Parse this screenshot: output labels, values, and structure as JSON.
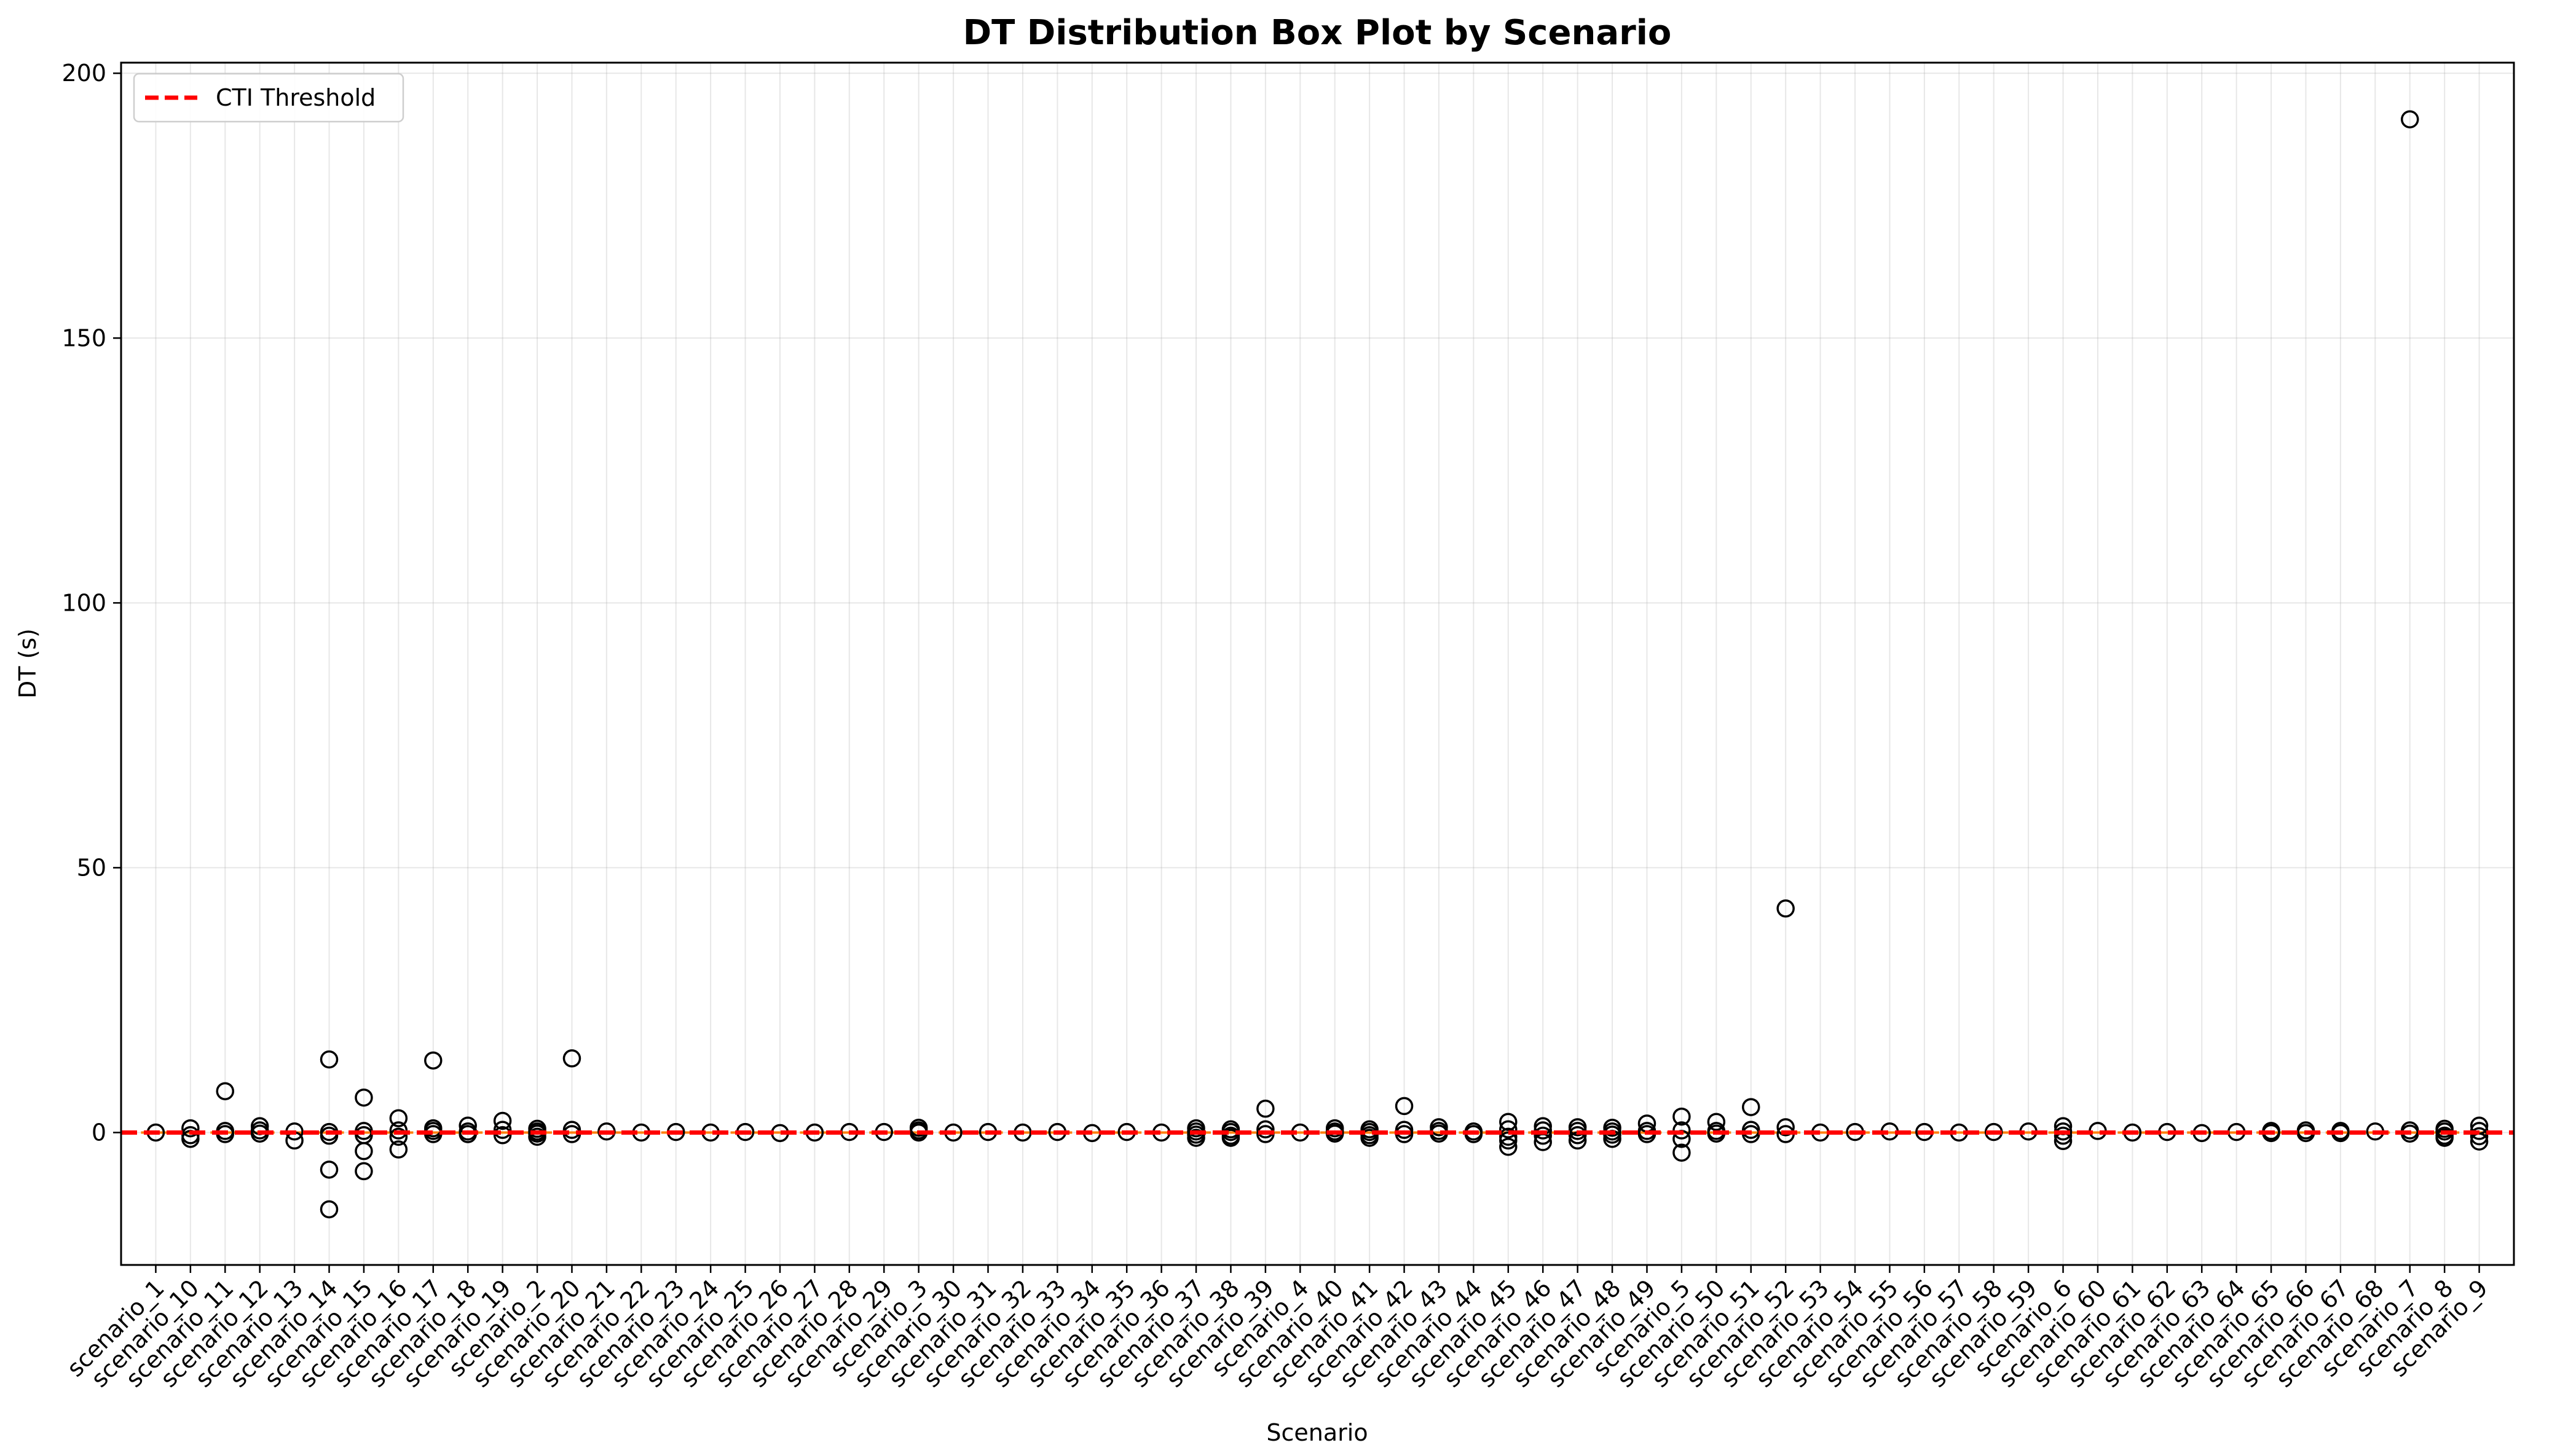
{
  "chart_data": {
    "type": "box",
    "title": "DT Distribution Box Plot by Scenario",
    "xlabel": "Scenario",
    "ylabel": "DT (s)",
    "ylim": [
      -25,
      202
    ],
    "yticks": [
      0,
      50,
      100,
      150,
      200
    ],
    "grid": true,
    "legend": {
      "placement": "top-left",
      "entries": [
        {
          "label": "CTI Threshold",
          "color": "#ff0000",
          "style": "dashed"
        }
      ]
    },
    "threshold": {
      "label": "CTI Threshold",
      "value": 0,
      "color": "#ff0000"
    },
    "categories": [
      "scenario_1",
      "scenario_10",
      "scenario_11",
      "scenario_12",
      "scenario_13",
      "scenario_14",
      "scenario_15",
      "scenario_16",
      "scenario_17",
      "scenario_18",
      "scenario_19",
      "scenario_2",
      "scenario_20",
      "scenario_21",
      "scenario_22",
      "scenario_23",
      "scenario_24",
      "scenario_25",
      "scenario_26",
      "scenario_27",
      "scenario_28",
      "scenario_29",
      "scenario_3",
      "scenario_30",
      "scenario_31",
      "scenario_32",
      "scenario_33",
      "scenario_34",
      "scenario_35",
      "scenario_36",
      "scenario_37",
      "scenario_38",
      "scenario_39",
      "scenario_4",
      "scenario_40",
      "scenario_41",
      "scenario_42",
      "scenario_43",
      "scenario_44",
      "scenario_45",
      "scenario_46",
      "scenario_47",
      "scenario_48",
      "scenario_49",
      "scenario_5",
      "scenario_50",
      "scenario_51",
      "scenario_52",
      "scenario_53",
      "scenario_54",
      "scenario_55",
      "scenario_56",
      "scenario_57",
      "scenario_58",
      "scenario_59",
      "scenario_6",
      "scenario_60",
      "scenario_61",
      "scenario_62",
      "scenario_63",
      "scenario_64",
      "scenario_65",
      "scenario_66",
      "scenario_67",
      "scenario_68",
      "scenario_7",
      "scenario_8",
      "scenario_9"
    ],
    "outliers": [
      [
        0.0
      ],
      [
        0.8,
        -0.5,
        -1.2
      ],
      [
        7.8,
        0.3,
        -0.3
      ],
      [
        1.2,
        0.4,
        -0.2
      ],
      [
        0.2,
        -1.5
      ],
      [
        13.8,
        0.1,
        -0.6,
        -7.0,
        -14.5
      ],
      [
        6.6,
        0.3,
        -0.5,
        -3.5,
        -7.3
      ],
      [
        2.7,
        0.4,
        -0.8,
        -3.2
      ],
      [
        13.6,
        0.8,
        0.3,
        -0.3
      ],
      [
        1.3,
        0.2,
        -0.3
      ],
      [
        2.2,
        0.5,
        -0.5
      ],
      [
        0.7,
        0.2,
        -0.2,
        -0.8
      ],
      [
        14.0,
        0.5,
        -0.3
      ],
      [
        0.2
      ],
      [
        0.0
      ],
      [
        0.1
      ],
      [
        0.0
      ],
      [
        0.1
      ],
      [
        -0.1
      ],
      [
        0.0
      ],
      [
        0.1
      ],
      [
        0.1
      ],
      [
        0.9,
        0.4,
        0.0
      ],
      [
        0.0
      ],
      [
        0.1
      ],
      [
        0.0
      ],
      [
        0.1
      ],
      [
        -0.1
      ],
      [
        0.1
      ],
      [
        0.0
      ],
      [
        0.8,
        0.2,
        -0.4,
        -1.0
      ],
      [
        0.6,
        0.1,
        -0.6,
        -1.0
      ],
      [
        4.5,
        0.6,
        -0.3
      ],
      [
        0.0
      ],
      [
        0.8,
        0.2,
        -0.2
      ],
      [
        0.6,
        0.1,
        -0.5,
        -1.0
      ],
      [
        5.0,
        0.5,
        -0.3
      ],
      [
        1.0,
        0.3,
        -0.2
      ],
      [
        0.2,
        -0.3
      ],
      [
        2.0,
        0.6,
        -0.8,
        -1.5,
        -2.7
      ],
      [
        1.2,
        0.4,
        -0.6,
        -1.8
      ],
      [
        1.0,
        0.3,
        -0.5,
        -1.5
      ],
      [
        0.9,
        0.2,
        -0.4,
        -1.2
      ],
      [
        1.7,
        0.3,
        -0.3
      ],
      [
        3.0,
        0.4,
        -1.2,
        -3.8
      ],
      [
        2.0,
        0.3,
        -0.2
      ],
      [
        4.8,
        0.5,
        -0.3
      ],
      [
        42.3,
        1.0,
        -0.3
      ],
      [
        0.0
      ],
      [
        0.1
      ],
      [
        0.2
      ],
      [
        0.1
      ],
      [
        0.0
      ],
      [
        0.1
      ],
      [
        0.2
      ],
      [
        1.2,
        0.2,
        -0.6,
        -1.6
      ],
      [
        0.3
      ],
      [
        0.0
      ],
      [
        0.1
      ],
      [
        -0.1
      ],
      [
        0.1
      ],
      [
        0.3,
        -0.1
      ],
      [
        0.4,
        -0.1
      ],
      [
        0.3,
        -0.1
      ],
      [
        0.2
      ],
      [
        191.3,
        0.4,
        -0.2
      ],
      [
        0.7,
        0.2,
        -0.6,
        -1.0
      ],
      [
        1.3,
        0.3,
        -0.7,
        -1.7
      ]
    ]
  }
}
